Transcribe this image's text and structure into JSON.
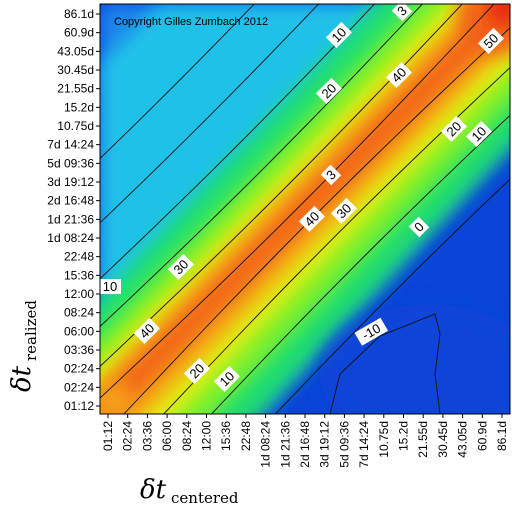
{
  "chart_data": {
    "type": "heatmap",
    "copyright": "Copyright Gilles Zumbach 2012",
    "xlabel": {
      "symbol": "δt",
      "subscript": "centered"
    },
    "ylabel": {
      "symbol": "δt",
      "subscript": "realized"
    },
    "x_ticks": [
      "01:12",
      "02:24",
      "03:36",
      "06:00",
      "08:24",
      "12:00",
      "15:36",
      "22:48",
      "1d 08:24",
      "1d 21:36",
      "2d 16:48",
      "3d 19:12",
      "5d 09:36",
      "7d 14:24",
      "10.75d",
      "15.2d",
      "21.55d",
      "30.45d",
      "43.05d",
      "60.9d",
      "86.1d"
    ],
    "y_ticks": [
      "01:12",
      "02:24",
      "02:24",
      "03:36",
      "06:00",
      "08:24",
      "12:00",
      "15:36",
      "22:48",
      "1d 08:24",
      "1d 21:36",
      "2d 16:48",
      "3d 19:12",
      "5d 09:36",
      "7d 14:24",
      "10.75d",
      "15.2d",
      "21.55d",
      "30.45d",
      "43.05d",
      "60.9d",
      "86.1d"
    ],
    "contour_levels": [
      0,
      10,
      20,
      30,
      40,
      50
    ],
    "contour_labels": [
      "10",
      "20",
      "40",
      "3",
      "50",
      "20",
      "10",
      "0",
      "30",
      "40",
      "3",
      "30",
      "10",
      "40",
      "20",
      "10",
      "-10"
    ],
    "color_scale": [
      "#0a44d8",
      "#1f8ff0",
      "#22d0e8",
      "#20e06a",
      "#7ef02a",
      "#e6f012",
      "#f7a818",
      "#f35e14",
      "#e42210"
    ]
  }
}
